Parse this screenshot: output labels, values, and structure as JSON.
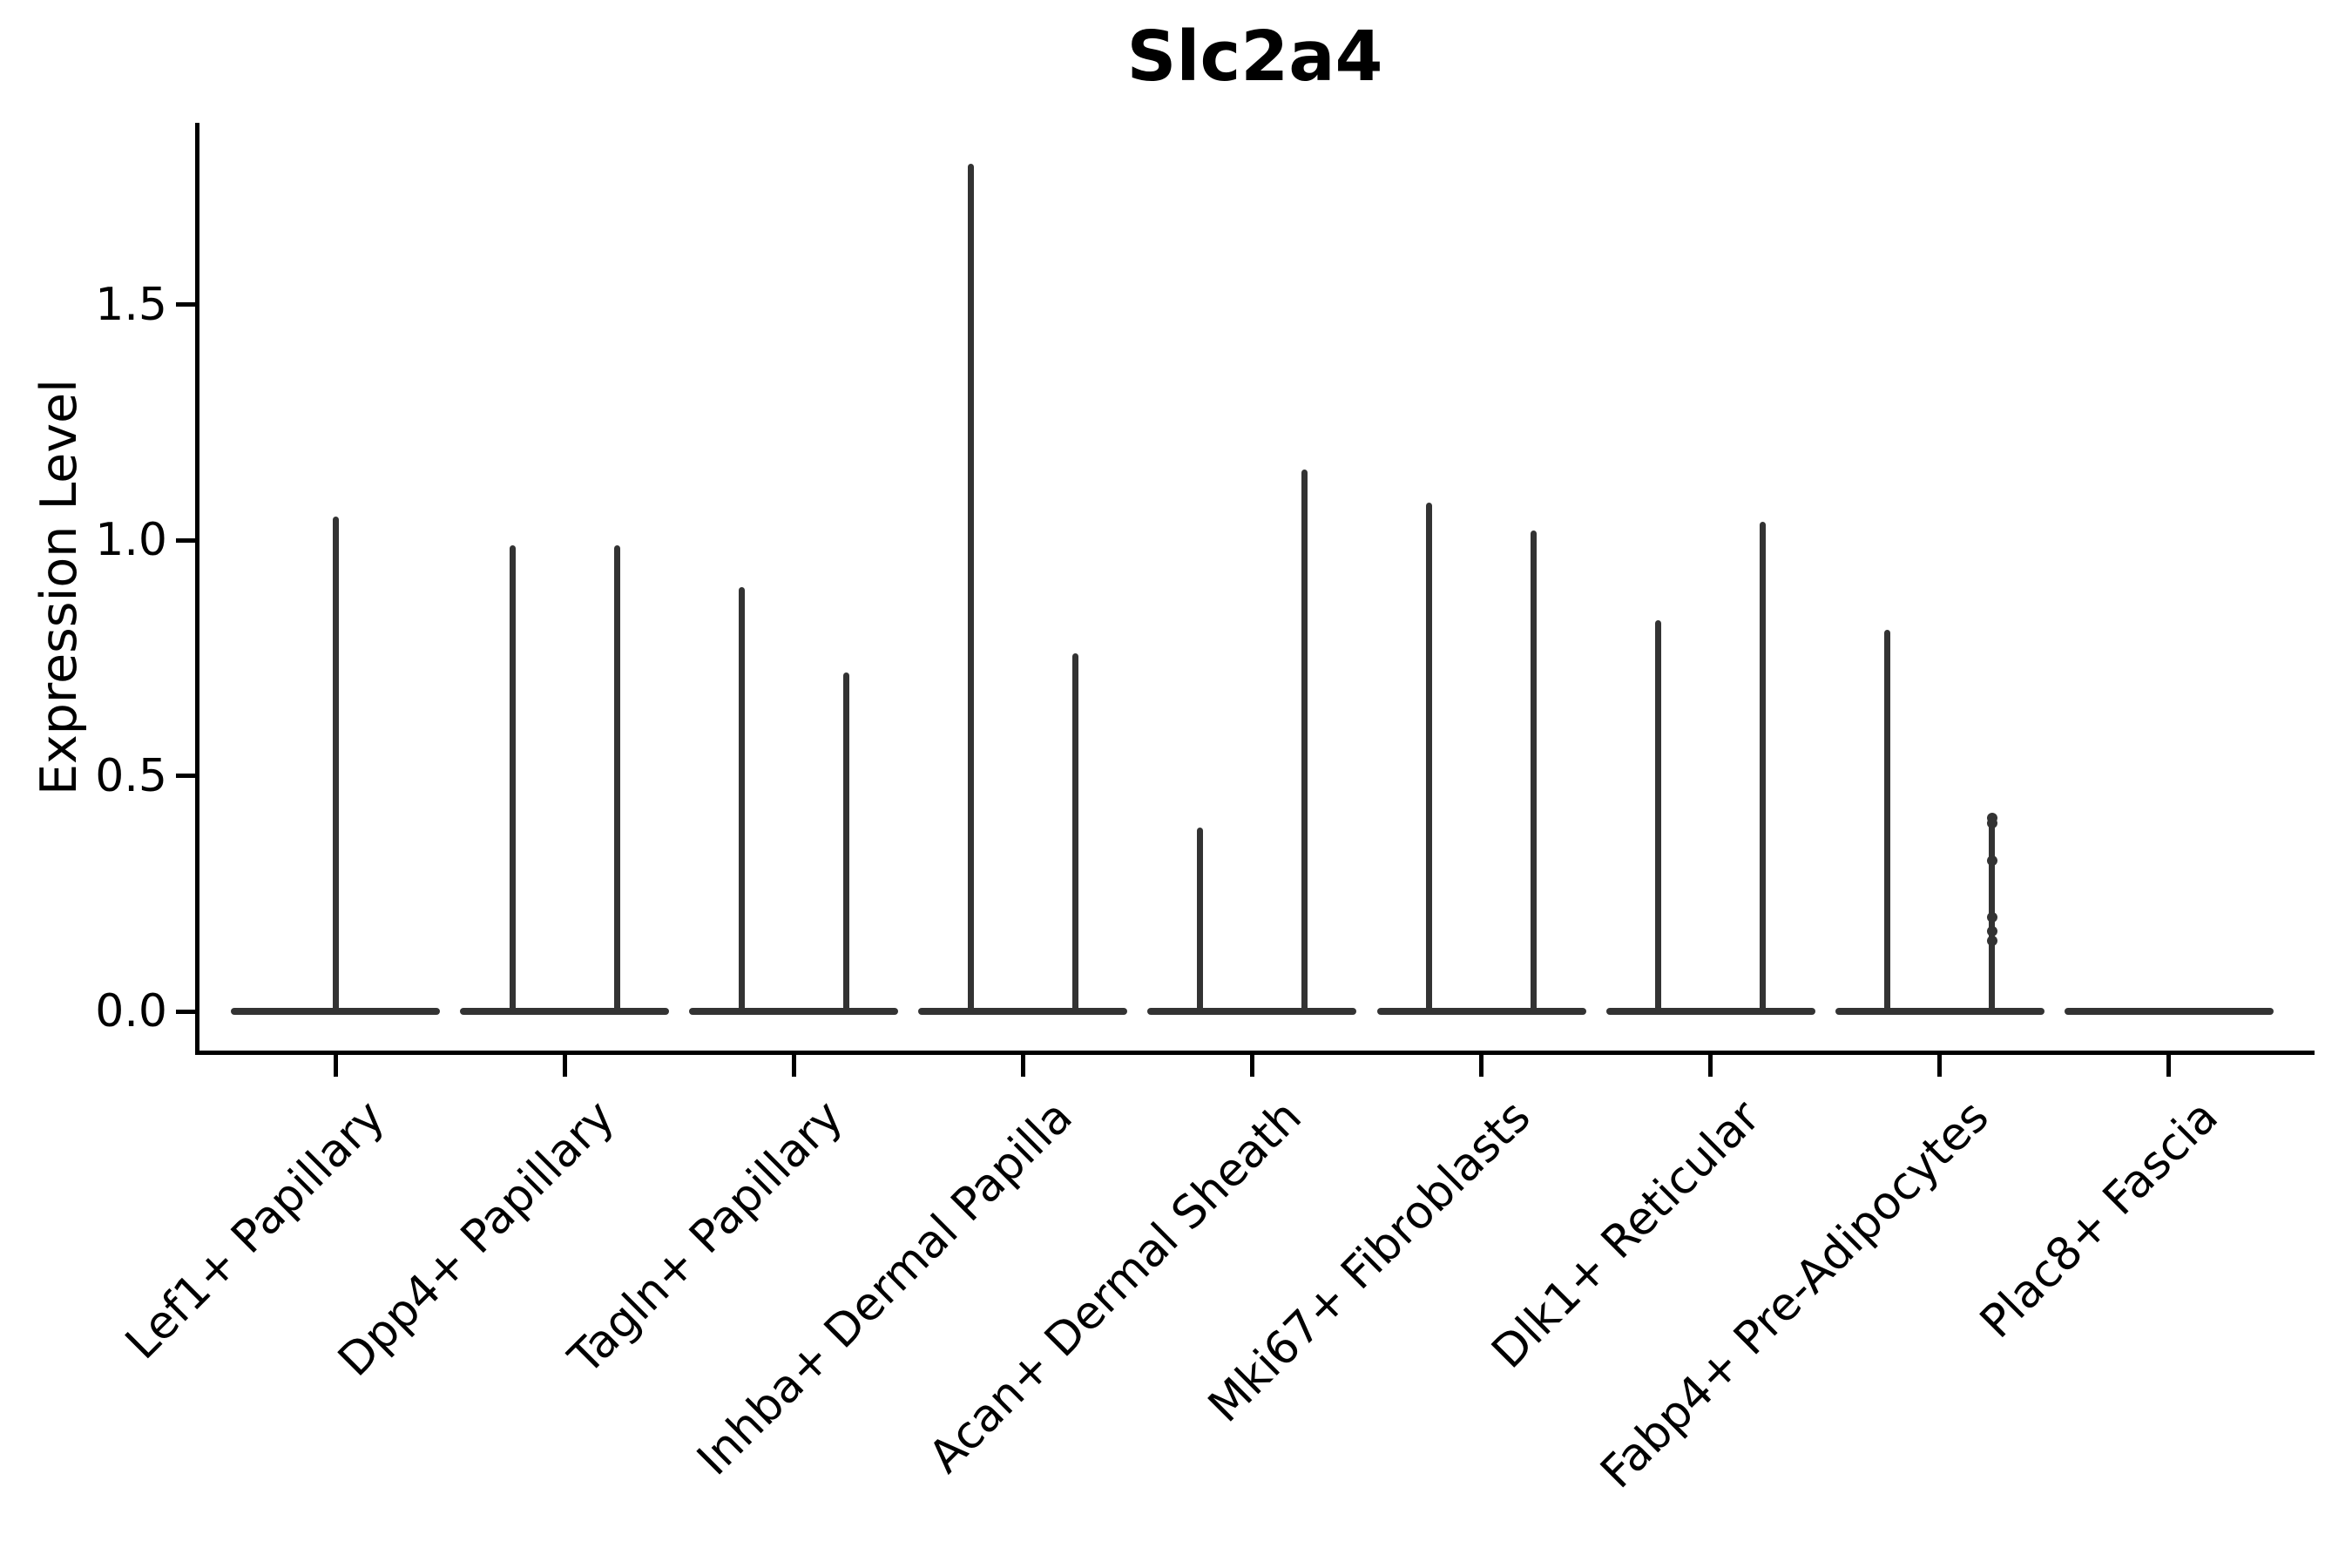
{
  "chart_data": {
    "type": "violin",
    "title": "Slc2a4",
    "xlabel": "",
    "ylabel": "Expression Level",
    "grid": false,
    "legend": null,
    "ylim": [
      -0.09,
      1.89
    ],
    "yticks": [
      {
        "value": 0.0,
        "label": "0.0"
      },
      {
        "value": 0.5,
        "label": "0.5"
      },
      {
        "value": 1.0,
        "label": "1.0"
      },
      {
        "value": 1.5,
        "label": "1.5"
      }
    ],
    "categories": [
      "Lef1+ Papillary",
      "Dpp4+ Papillary",
      "Tagln+ Papillary",
      "Inhba+ Dermal Papilla",
      "Acan+ Dermal Sheath",
      "Mki67+ Fibroblasts",
      "Dlk1+ Reticular",
      "Fabp4+ Pre-Adipocytes",
      "Plac8+ Fascia"
    ],
    "violins": [
      {
        "category": "Lef1+ Papillary",
        "spikes": [
          {
            "slot": "center",
            "max": 1.05
          }
        ]
      },
      {
        "category": "Dpp4+ Papillary",
        "spikes": [
          {
            "slot": "left",
            "max": 0.99
          },
          {
            "slot": "right",
            "max": 0.99
          }
        ]
      },
      {
        "category": "Tagln+ Papillary",
        "spikes": [
          {
            "slot": "left",
            "max": 0.9
          },
          {
            "slot": "right",
            "max": 0.72
          }
        ]
      },
      {
        "category": "Inhba+ Dermal Papilla",
        "spikes": [
          {
            "slot": "left",
            "max": 1.8
          },
          {
            "slot": "right",
            "max": 0.76
          }
        ]
      },
      {
        "category": "Acan+ Dermal Sheath",
        "spikes": [
          {
            "slot": "left",
            "max": 0.39
          },
          {
            "slot": "right",
            "max": 1.15
          }
        ]
      },
      {
        "category": "Mki67+ Fibroblasts",
        "spikes": [
          {
            "slot": "left",
            "max": 1.08
          },
          {
            "slot": "right",
            "max": 1.02
          }
        ]
      },
      {
        "category": "Dlk1+ Reticular",
        "spikes": [
          {
            "slot": "left",
            "max": 0.83
          },
          {
            "slot": "right",
            "max": 1.04
          }
        ]
      },
      {
        "category": "Fabp4+ Pre-Adipocytes",
        "spikes": [
          {
            "slot": "left",
            "max": 0.81
          },
          {
            "slot": "right",
            "max": 0.42,
            "points": [
              0.41,
              0.4,
              0.32,
              0.2,
              0.17,
              0.15
            ]
          }
        ]
      },
      {
        "category": "Plac8+ Fascia",
        "spikes": []
      }
    ],
    "colors": {
      "violin": "#333333",
      "axis": "#000000",
      "text": "#000000",
      "background": "#ffffff"
    }
  }
}
